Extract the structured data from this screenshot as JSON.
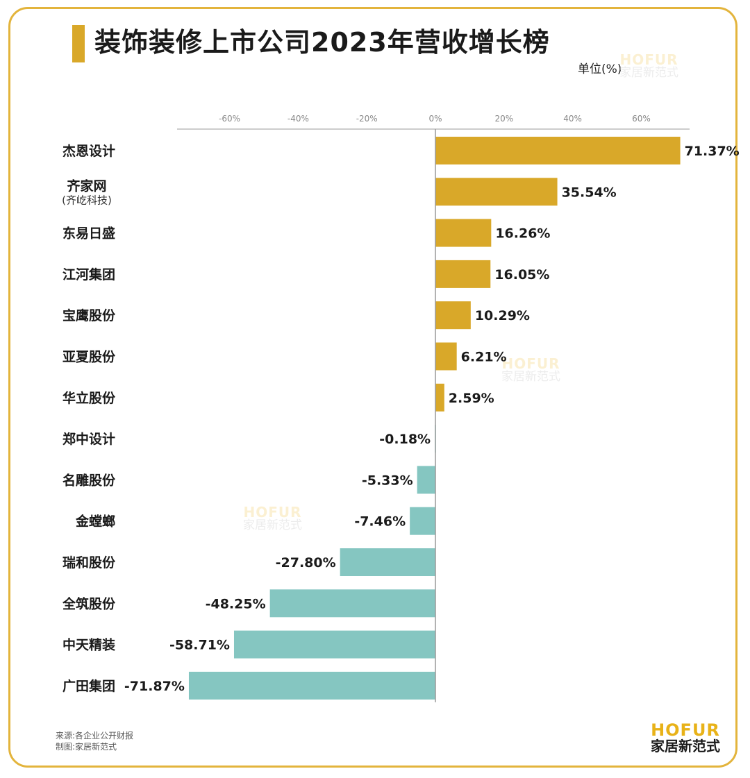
{
  "title": "装饰装修上市公司2023年营收增长榜",
  "unit_label": "单位(%)",
  "colors": {
    "positive": "#d9a829",
    "negative": "#85c6c1",
    "border": "#e3b43c",
    "axis": "#999999"
  },
  "watermark": {
    "en": "HOFUR",
    "cn": "家居新范式"
  },
  "chart_data": {
    "type": "bar",
    "orientation": "horizontal",
    "x_ticks": [
      "-60%",
      "-40%",
      "-20%",
      "0%",
      "20%",
      "40%",
      "60%"
    ],
    "x_tick_values": [
      -60,
      -40,
      -20,
      0,
      20,
      40,
      60
    ],
    "categories": [
      "杰恩设计",
      "齐家网",
      "东易日盛",
      "江河集团",
      "宝鹰股份",
      "亚夏股份",
      "华立股份",
      "郑中设计",
      "名雕股份",
      "金螳螂",
      "瑞和股份",
      "全筑股份",
      "中天精装",
      "广田集团"
    ],
    "category_sublabels": [
      "",
      "(齐屹科技)",
      "",
      "",
      "",
      "",
      "",
      "",
      "",
      "",
      "",
      "",
      "",
      ""
    ],
    "values": [
      71.37,
      35.54,
      16.26,
      16.05,
      10.29,
      6.21,
      2.59,
      -0.18,
      -5.33,
      -7.46,
      -27.8,
      -48.25,
      -58.71,
      -71.87
    ],
    "value_labels": [
      "71.37%",
      "35.54%",
      "16.26%",
      "16.05%",
      "10.29%",
      "6.21%",
      "2.59%",
      "-0.18%",
      "-5.33%",
      "-7.46%",
      "-27.80%",
      "-48.25%",
      "-58.71%",
      "-71.87%"
    ]
  },
  "footer": {
    "source": "来源:各企业公开财报",
    "made_by": "制图:家居新范式"
  },
  "logo": {
    "en": "HOFUR",
    "cn": "家居新范式"
  }
}
